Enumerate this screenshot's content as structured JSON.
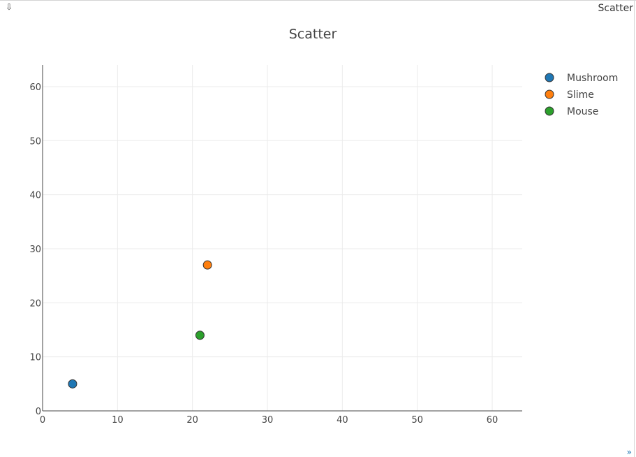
{
  "toolbar": {
    "download_icon": "⇩",
    "tab_label": "Scatter",
    "expand_icon": "»"
  },
  "icons": {
    "download": "download-arrow-icon",
    "expand": "expand-chevron-icon"
  },
  "chart_data": {
    "type": "scatter",
    "title": "Scatter",
    "xlabel": "",
    "ylabel": "",
    "xlim": [
      0,
      64
    ],
    "ylim": [
      0,
      64
    ],
    "xticks": [
      0,
      10,
      20,
      30,
      40,
      50,
      60
    ],
    "yticks": [
      0,
      10,
      20,
      30,
      40,
      50,
      60
    ],
    "grid": true,
    "legend_position": "top-right",
    "series": [
      {
        "name": "Mushroom",
        "color": "#1f77b4",
        "x": [
          4
        ],
        "y": [
          5
        ]
      },
      {
        "name": "Slime",
        "color": "#ff7f0e",
        "x": [
          22
        ],
        "y": [
          27
        ]
      },
      {
        "name": "Mouse",
        "color": "#2ca02c",
        "x": [
          21
        ],
        "y": [
          14
        ]
      }
    ]
  }
}
